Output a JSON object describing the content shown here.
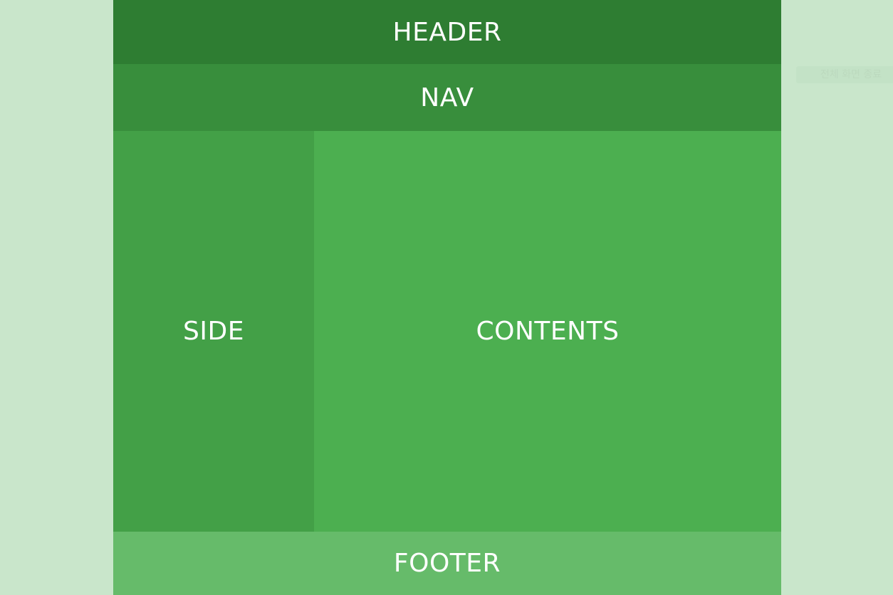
{
  "layout": {
    "header_label": "HEADER",
    "nav_label": "NAV",
    "side_label": "SIDE",
    "contents_label": "CONTENTS",
    "footer_label": "FOOTER"
  },
  "overlay": {
    "faint_text": "전체 화면 종료"
  },
  "colors": {
    "page_background": "#c9e6cb",
    "header": "#2e7d32",
    "nav": "#388e3c",
    "side": "#43a047",
    "contents": "#4caf50",
    "footer": "#66bb6a",
    "text": "#ffffff"
  }
}
